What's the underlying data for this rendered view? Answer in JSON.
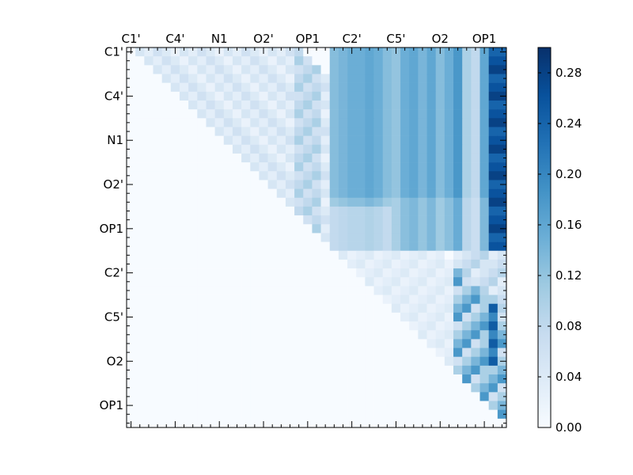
{
  "chart_data": {
    "type": "heatmap",
    "title": "",
    "xlabel": "",
    "ylabel": "",
    "grid": false,
    "colormap": "Blues",
    "color_min": "#f7fbff",
    "color_max": "#08306b",
    "rows": 43,
    "cols": 43,
    "top_tick_labels": [
      "C1'",
      "C4'",
      "N1",
      "O2'",
      "OP1",
      "C2'",
      "C5'",
      "O2",
      "OP1"
    ],
    "top_tick_positions": [
      0,
      5,
      10,
      15,
      20,
      25,
      30,
      35,
      40
    ],
    "left_tick_labels": [
      "C1'",
      "C4'",
      "N1",
      "O2'",
      "OP1",
      "C2'",
      "C5'",
      "O2",
      "OP1"
    ],
    "left_tick_positions": [
      0,
      5,
      10,
      15,
      20,
      25,
      30,
      35,
      40
    ],
    "colorbar": {
      "min": 0.0,
      "max": 0.3,
      "tick_values": [
        0.0,
        0.04,
        0.08,
        0.12,
        0.16,
        0.2,
        0.24,
        0.28
      ],
      "tick_labels": [
        "0.00",
        "0.04",
        "0.08",
        "0.12",
        "0.16",
        "0.20",
        "0.24",
        "0.28"
      ]
    },
    "values": "upper-triangular matrix, estimated from color; see script for reconstructed cells"
  }
}
